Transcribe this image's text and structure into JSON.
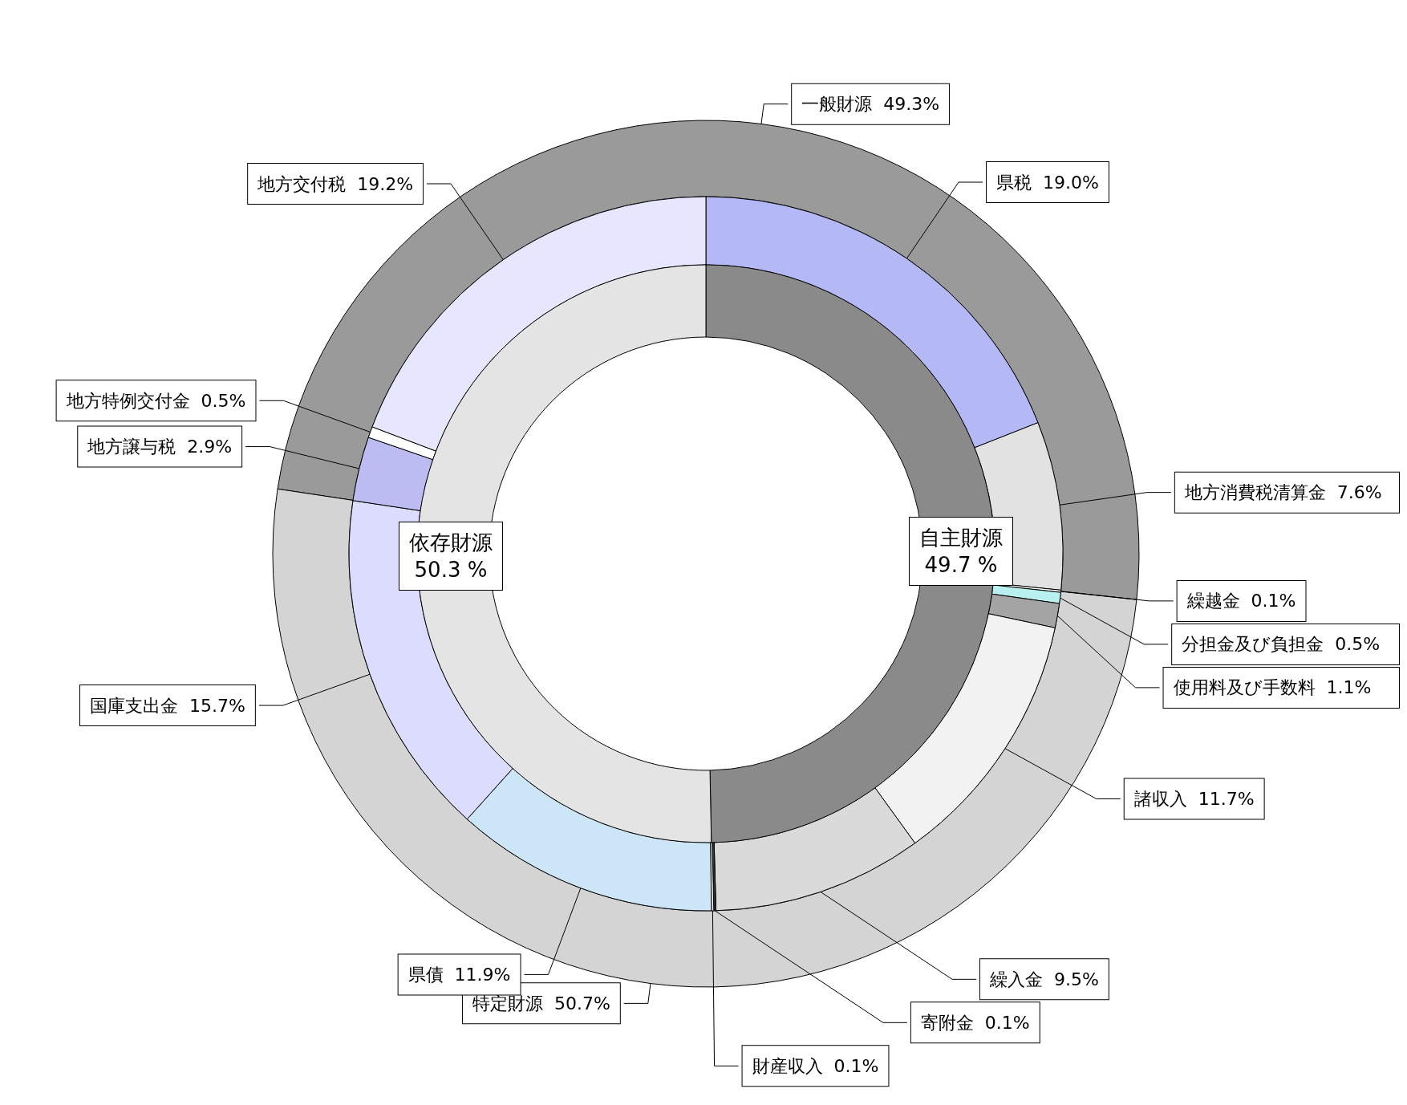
{
  "chart_data": [
    {
      "type": "donut",
      "categories": [
        "一般財源",
        "特定財源"
      ],
      "values": [
        49.3,
        50.7
      ],
      "value_labels": [
        "49.3%",
        "50.7%"
      ],
      "colors": [
        "#9a9a9a",
        "#d4d4d4"
      ]
    },
    {
      "type": "donut",
      "categories": [
        "県税",
        "地方消費税清算金",
        "繰越金",
        "分担金及び負担金",
        "使用料及び手数料",
        "諸収入",
        "繰入金",
        "寄附金",
        "財産収入",
        "県債",
        "国庫支出金",
        "地方譲与税",
        "地方特例交付金",
        "地方交付税"
      ],
      "values": [
        19.0,
        7.6,
        0.1,
        0.5,
        1.1,
        11.7,
        9.5,
        0.1,
        0.1,
        11.9,
        15.7,
        2.9,
        0.5,
        19.2
      ],
      "value_labels": [
        "19.0%",
        "7.6%",
        "0.1%",
        "0.5%",
        "1.1%",
        "11.7%",
        "9.5%",
        "0.1%",
        "0.1%",
        "11.9%",
        "15.7%",
        "2.9%",
        "0.5%",
        "19.2%"
      ],
      "colors": [
        "#b4b8f4",
        "#e2e2e2",
        "#ffffff",
        "#b8f0f0",
        "#a4a4a4",
        "#f2f2f2",
        "#dadada",
        "#333333",
        "#ffffff",
        "#cce6f8",
        "#dcdcff",
        "#bcbcf2",
        "#ffffff",
        "#e6e6ff"
      ]
    },
    {
      "type": "donut",
      "categories": [
        "自主財源",
        "依存財源"
      ],
      "values": [
        49.7,
        50.3
      ],
      "value_labels": [
        "49.7 %",
        "50.3 %"
      ],
      "colors": [
        "#8a8a8a",
        "#e4e4e4"
      ]
    }
  ]
}
